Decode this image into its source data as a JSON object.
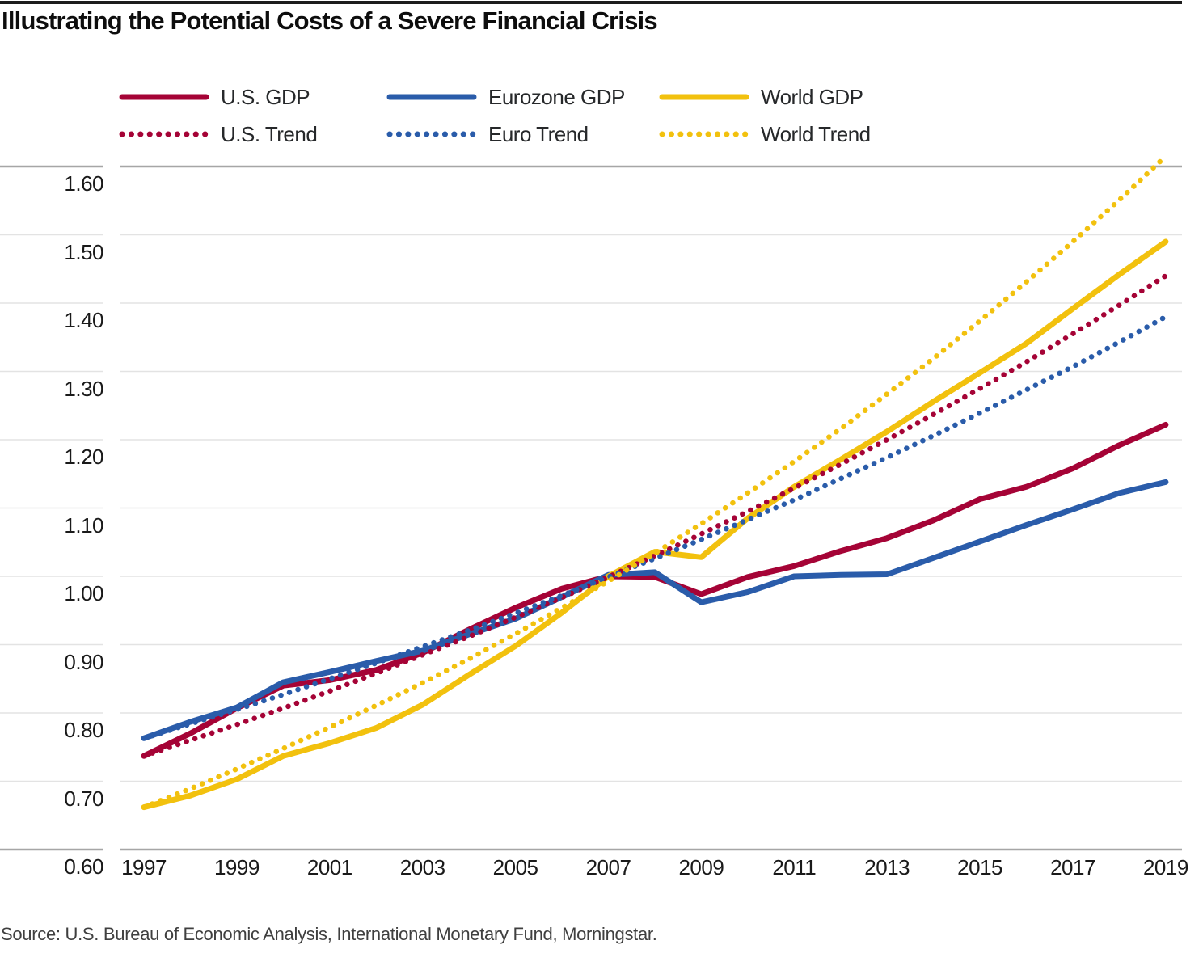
{
  "chart_data": {
    "type": "line",
    "title": "Illustrating the Potential Costs of a Severe Financial Crisis",
    "source": "Source: U.S. Bureau of Economic Analysis, International Monetary Fund, Morningstar.",
    "xlabel": "",
    "ylabel": "",
    "xlim": [
      1997,
      2019
    ],
    "ylim": [
      0.6,
      1.6
    ],
    "grid": true,
    "legend_position": "top",
    "years": [
      1997,
      1998,
      1999,
      2000,
      2001,
      2002,
      2003,
      2004,
      2005,
      2006,
      2007,
      2008,
      2009,
      2010,
      2011,
      2012,
      2013,
      2014,
      2015,
      2016,
      2017,
      2018,
      2019
    ],
    "x_tick_labels": [
      "1997",
      "1999",
      "2001",
      "2003",
      "2005",
      "2007",
      "2009",
      "2011",
      "2013",
      "2015",
      "2017",
      "2019"
    ],
    "y_axis": {
      "tick_values": [
        0.6,
        0.7,
        0.8,
        0.9,
        1.0,
        1.1,
        1.2,
        1.3,
        1.4,
        1.5,
        1.6
      ],
      "tick_labels": [
        "0.60",
        "0.70",
        "0.80",
        "0.90",
        "1.00",
        "1.10",
        "1.20",
        "1.30",
        "1.40",
        "1.50",
        "1.60"
      ]
    },
    "series": [
      {
        "name": "U.S. GDP",
        "color": "#A50336",
        "style": "solid",
        "values": [
          0.737,
          0.77,
          0.807,
          0.84,
          0.848,
          0.863,
          0.888,
          0.922,
          0.954,
          0.982,
          1.0,
          0.999,
          0.974,
          0.999,
          1.015,
          1.037,
          1.056,
          1.082,
          1.113,
          1.131,
          1.158,
          1.192,
          1.222
        ]
      },
      {
        "name": "Eurozone GDP",
        "color": "#2A5CAA",
        "style": "solid",
        "values": [
          0.763,
          0.787,
          0.808,
          0.845,
          0.86,
          0.876,
          0.891,
          0.915,
          0.938,
          0.97,
          1.002,
          1.006,
          0.962,
          0.977,
          1.0,
          1.002,
          1.003,
          1.027,
          1.051,
          1.075,
          1.098,
          1.122,
          1.138
        ]
      },
      {
        "name": "World GDP",
        "color": "#F2C10E",
        "style": "solid",
        "values": [
          0.662,
          0.679,
          0.703,
          0.737,
          0.756,
          0.778,
          0.812,
          0.856,
          0.898,
          0.947,
          1.0,
          1.036,
          1.028,
          1.085,
          1.131,
          1.171,
          1.212,
          1.256,
          1.298,
          1.341,
          1.392,
          1.442,
          1.49
        ]
      },
      {
        "name": "U.S. Trend",
        "color": "#A50336",
        "style": "dotted",
        "values": [
          0.737,
          0.76,
          0.783,
          0.807,
          0.832,
          0.858,
          0.885,
          0.912,
          0.94,
          0.969,
          0.999,
          1.03,
          1.062,
          1.095,
          1.129,
          1.164,
          1.2,
          1.237,
          1.275,
          1.314,
          1.355,
          1.397,
          1.44
        ]
      },
      {
        "name": "Euro Trend",
        "color": "#2A5CAA",
        "style": "dotted",
        "values": [
          0.763,
          0.784,
          0.805,
          0.827,
          0.85,
          0.873,
          0.897,
          0.921,
          0.946,
          0.972,
          0.999,
          1.026,
          1.054,
          1.083,
          1.112,
          1.143,
          1.174,
          1.206,
          1.239,
          1.273,
          1.307,
          1.343,
          1.38
        ]
      },
      {
        "name": "World Trend",
        "color": "#F2C10E",
        "style": "dotted",
        "values": [
          0.662,
          0.689,
          0.718,
          0.748,
          0.779,
          0.811,
          0.844,
          0.879,
          0.916,
          0.954,
          0.993,
          1.034,
          1.077,
          1.122,
          1.168,
          1.216,
          1.267,
          1.319,
          1.374,
          1.431,
          1.49,
          1.551,
          1.615
        ]
      }
    ],
    "colors": {
      "us_red": "#A50336",
      "euro_blue": "#2A5CAA",
      "world_yellow": "#F2C10E",
      "grid_inner": "#E3E3E3",
      "grid_boundary": "#A6A6A6",
      "top_rule": "#1C1C1C"
    }
  }
}
